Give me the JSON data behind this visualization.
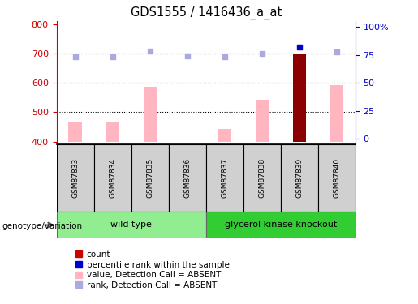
{
  "title": "GDS1555 / 1416436_a_at",
  "samples": [
    "GSM87833",
    "GSM87834",
    "GSM87835",
    "GSM87836",
    "GSM87837",
    "GSM87838",
    "GSM87839",
    "GSM87840"
  ],
  "bar_values": [
    469,
    469,
    588,
    400,
    443,
    543,
    700,
    592
  ],
  "bar_colors": [
    "#ffb6c1",
    "#ffb6c1",
    "#ffb6c1",
    "#ffb6c1",
    "#ffb6c1",
    "#ffb6c1",
    "#8b0000",
    "#ffb6c1"
  ],
  "rank_values": [
    690,
    688,
    707,
    693,
    688,
    700,
    722,
    706
  ],
  "rank_colors_list": [
    "#aaaadd",
    "#aaaadd",
    "#aaaadd",
    "#aaaadd",
    "#aaaadd",
    "#aaaadd",
    "#0000cc",
    "#aaaadd"
  ],
  "bar_bottom": 400,
  "ylim_left": [
    390,
    810
  ],
  "ylim_right": [
    -5,
    105
  ],
  "yticks_left": [
    400,
    500,
    600,
    700,
    800
  ],
  "yticks_right": [
    0,
    25,
    50,
    75,
    100
  ],
  "ytick_labels_right": [
    "0",
    "25",
    "50",
    "75",
    "100%"
  ],
  "grid_lines": [
    500,
    600,
    700
  ],
  "wild_type_label": "wild type",
  "knockout_label": "glycerol kinase knockout",
  "genotype_label": "genotype/variation",
  "wt_color": "#90ee90",
  "ko_color": "#32cd32",
  "sample_box_color": "#d0d0d0",
  "legend_items": [
    {
      "color": "#cc0000",
      "label": "count",
      "type": "square"
    },
    {
      "color": "#0000cc",
      "label": "percentile rank within the sample",
      "type": "square"
    },
    {
      "color": "#ffb6c1",
      "label": "value, Detection Call = ABSENT",
      "type": "square"
    },
    {
      "color": "#aaaadd",
      "label": "rank, Detection Call = ABSENT",
      "type": "square"
    }
  ],
  "left_axis_color": "#cc0000",
  "right_axis_color": "#0000cc",
  "bar_width": 0.35
}
